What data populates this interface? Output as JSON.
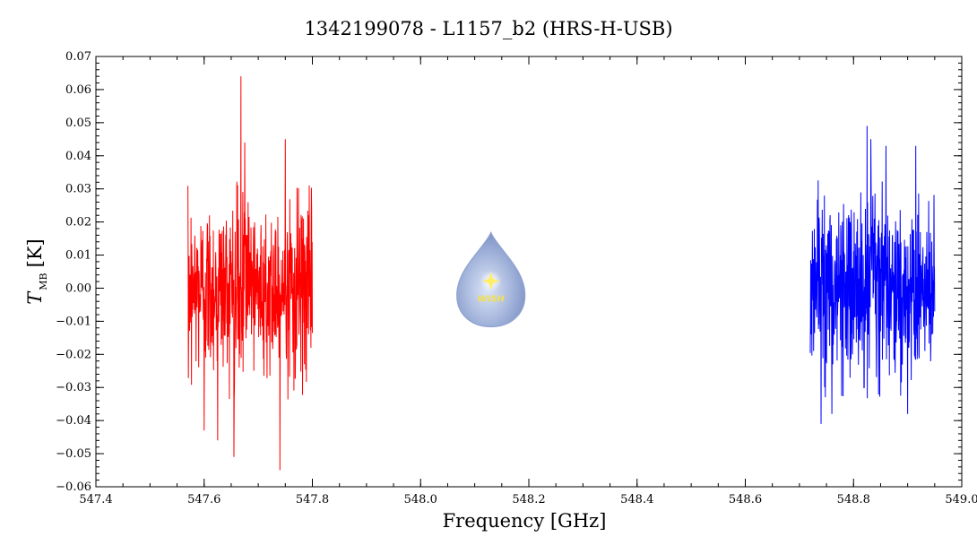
{
  "chart_data": {
    "type": "line",
    "title": "1342199078 - L1157_b2 (HRS-H-USB)",
    "xlabel": "Frequency [GHz]",
    "ylabel": {
      "main": "T",
      "sub": "MB",
      "unit": "[K]"
    },
    "xlim": [
      547.4,
      549.0
    ],
    "ylim": [
      -0.06,
      0.07
    ],
    "xticks": [
      547.4,
      547.6,
      547.8,
      548.0,
      548.2,
      548.4,
      548.6,
      548.8,
      549.0
    ],
    "xtick_labels": [
      "547.4",
      "547.6",
      "547.8",
      "548.0",
      "548.2",
      "548.4",
      "548.6",
      "548.8",
      "549.0"
    ],
    "yticks": [
      -0.06,
      -0.05,
      -0.04,
      -0.03,
      -0.02,
      -0.01,
      0.0,
      0.01,
      0.02,
      0.03,
      0.04,
      0.05,
      0.06,
      0.07
    ],
    "ytick_labels": [
      "−0.06",
      "−0.05",
      "−0.04",
      "−0.03",
      "−0.02",
      "−0.01",
      "0.00",
      "0.01",
      "0.02",
      "0.03",
      "0.04",
      "0.05",
      "0.06",
      "0.07"
    ],
    "grid": false,
    "series": [
      {
        "color": "#ff0000",
        "x_range": [
          547.57,
          547.8
        ],
        "sample_count": 520,
        "noise_rms": 0.013,
        "peaks": [
          {
            "x": 547.668,
            "y": 0.064
          },
          {
            "x": 547.74,
            "y": -0.055
          },
          {
            "x": 547.655,
            "y": -0.051
          },
          {
            "x": 547.675,
            "y": 0.044
          },
          {
            "x": 547.75,
            "y": 0.045
          },
          {
            "x": 547.6,
            "y": -0.043
          },
          {
            "x": 547.625,
            "y": -0.046
          }
        ]
      },
      {
        "color": "#0000ff",
        "x_range": [
          548.72,
          548.95
        ],
        "sample_count": 520,
        "noise_rms": 0.013,
        "peaks": [
          {
            "x": 548.825,
            "y": 0.049
          },
          {
            "x": 548.832,
            "y": 0.045
          },
          {
            "x": 548.74,
            "y": -0.041
          },
          {
            "x": 548.76,
            "y": -0.038
          },
          {
            "x": 548.9,
            "y": -0.038
          },
          {
            "x": 548.86,
            "y": 0.043
          },
          {
            "x": 548.915,
            "y": 0.043
          }
        ]
      }
    ]
  },
  "logo": {
    "text": "WISH",
    "x": 548.13,
    "y": 0.0
  }
}
